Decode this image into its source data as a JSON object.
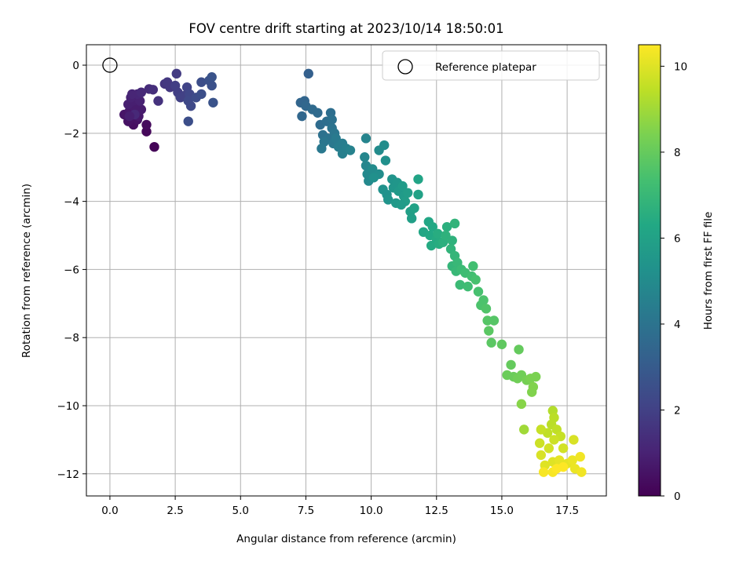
{
  "chart_data": {
    "type": "scatter",
    "title": "FOV centre drift starting at 2023/10/14 18:50:01",
    "xlabel": "Angular distance from reference (arcmin)",
    "ylabel": "Rotation from reference (arcmin)",
    "xlim": [
      -0.9,
      19.0
    ],
    "ylim": [
      -12.65,
      0.6
    ],
    "xticks": [
      0.0,
      2.5,
      5.0,
      7.5,
      10.0,
      12.5,
      15.0,
      17.5
    ],
    "xtick_labels": [
      "0.0",
      "2.5",
      "5.0",
      "7.5",
      "10.0",
      "12.5",
      "15.0",
      "17.5"
    ],
    "yticks": [
      0,
      -2,
      -4,
      -6,
      -8,
      -10,
      -12
    ],
    "ytick_labels": [
      "0",
      "−2",
      "−4",
      "−6",
      "−8",
      "−10",
      "−12"
    ],
    "grid": true,
    "legend": {
      "position": "top-right",
      "entries": [
        "Reference platepar"
      ]
    },
    "reference_point": {
      "x": 0.0,
      "y": 0.0,
      "marker": "open-circle"
    },
    "colorbar": {
      "label": "Hours from first FF file",
      "colormap": "viridis",
      "range": [
        0,
        10.5
      ],
      "ticks": [
        0,
        2,
        4,
        6,
        8,
        10
      ],
      "tick_labels": [
        "0",
        "2",
        "4",
        "6",
        "8",
        "10"
      ]
    },
    "points": [
      {
        "x": 1.7,
        "y": -2.4,
        "c": 0.1
      },
      {
        "x": 1.4,
        "y": -1.95,
        "c": 0.2
      },
      {
        "x": 1.4,
        "y": -1.75,
        "c": 0.3
      },
      {
        "x": 0.9,
        "y": -1.75,
        "c": 0.4
      },
      {
        "x": 1.05,
        "y": -1.6,
        "c": 0.5
      },
      {
        "x": 0.7,
        "y": -1.65,
        "c": 0.5
      },
      {
        "x": 0.55,
        "y": -1.45,
        "c": 0.6
      },
      {
        "x": 0.75,
        "y": -1.35,
        "c": 0.7
      },
      {
        "x": 1.1,
        "y": -1.5,
        "c": 0.7
      },
      {
        "x": 1.2,
        "y": -1.3,
        "c": 0.8
      },
      {
        "x": 0.95,
        "y": -1.25,
        "c": 0.8
      },
      {
        "x": 0.7,
        "y": -1.15,
        "c": 0.9
      },
      {
        "x": 0.9,
        "y": -1.05,
        "c": 0.9
      },
      {
        "x": 1.15,
        "y": -1.05,
        "c": 1.0
      },
      {
        "x": 0.8,
        "y": -0.95,
        "c": 1.0
      },
      {
        "x": 1.05,
        "y": -0.85,
        "c": 1.1
      },
      {
        "x": 0.85,
        "y": -0.85,
        "c": 1.1
      },
      {
        "x": 1.2,
        "y": -0.8,
        "c": 1.2
      },
      {
        "x": 0.95,
        "y": -1.45,
        "c": 1.2
      },
      {
        "x": 0.75,
        "y": -1.5,
        "c": 0.9
      },
      {
        "x": 1.5,
        "y": -0.7,
        "c": 1.3
      },
      {
        "x": 1.65,
        "y": -0.72,
        "c": 1.4
      },
      {
        "x": 1.85,
        "y": -1.05,
        "c": 1.5
      },
      {
        "x": 2.1,
        "y": -0.55,
        "c": 1.6
      },
      {
        "x": 2.3,
        "y": -0.65,
        "c": 1.7
      },
      {
        "x": 2.2,
        "y": -0.5,
        "c": 1.7
      },
      {
        "x": 2.55,
        "y": -0.25,
        "c": 1.8
      },
      {
        "x": 2.5,
        "y": -0.6,
        "c": 1.9
      },
      {
        "x": 2.6,
        "y": -0.8,
        "c": 1.9
      },
      {
        "x": 2.7,
        "y": -0.95,
        "c": 2.0
      },
      {
        "x": 2.85,
        "y": -0.9,
        "c": 2.0
      },
      {
        "x": 2.95,
        "y": -0.65,
        "c": 2.1
      },
      {
        "x": 3.05,
        "y": -0.85,
        "c": 2.2
      },
      {
        "x": 3.0,
        "y": -1.05,
        "c": 2.3
      },
      {
        "x": 3.1,
        "y": -1.2,
        "c": 2.3
      },
      {
        "x": 3.3,
        "y": -0.95,
        "c": 2.4
      },
      {
        "x": 3.5,
        "y": -0.85,
        "c": 2.5
      },
      {
        "x": 3.5,
        "y": -0.5,
        "c": 2.5
      },
      {
        "x": 3.8,
        "y": -0.45,
        "c": 2.6
      },
      {
        "x": 3.9,
        "y": -0.6,
        "c": 2.6
      },
      {
        "x": 3.9,
        "y": -0.35,
        "c": 2.7
      },
      {
        "x": 3.95,
        "y": -1.1,
        "c": 2.7
      },
      {
        "x": 3.0,
        "y": -1.65,
        "c": 2.5
      },
      {
        "x": 7.6,
        "y": -0.25,
        "c": 3.2
      },
      {
        "x": 7.3,
        "y": -1.1,
        "c": 3.4
      },
      {
        "x": 7.45,
        "y": -1.05,
        "c": 3.4
      },
      {
        "x": 7.5,
        "y": -1.2,
        "c": 3.5
      },
      {
        "x": 7.35,
        "y": -1.5,
        "c": 3.5
      },
      {
        "x": 7.75,
        "y": -1.3,
        "c": 3.6
      },
      {
        "x": 7.95,
        "y": -1.4,
        "c": 3.6
      },
      {
        "x": 8.05,
        "y": -1.75,
        "c": 3.7
      },
      {
        "x": 8.3,
        "y": -1.65,
        "c": 3.8
      },
      {
        "x": 8.45,
        "y": -1.4,
        "c": 3.8
      },
      {
        "x": 8.5,
        "y": -1.6,
        "c": 3.9
      },
      {
        "x": 8.15,
        "y": -2.05,
        "c": 3.9
      },
      {
        "x": 8.35,
        "y": -2.15,
        "c": 4.0
      },
      {
        "x": 8.5,
        "y": -1.85,
        "c": 4.0
      },
      {
        "x": 8.6,
        "y": -2.0,
        "c": 4.1
      },
      {
        "x": 8.2,
        "y": -2.25,
        "c": 4.1
      },
      {
        "x": 8.55,
        "y": -2.3,
        "c": 4.2
      },
      {
        "x": 8.1,
        "y": -2.45,
        "c": 4.2
      },
      {
        "x": 8.65,
        "y": -2.15,
        "c": 4.3
      },
      {
        "x": 8.75,
        "y": -2.4,
        "c": 4.4
      },
      {
        "x": 8.9,
        "y": -2.3,
        "c": 4.4
      },
      {
        "x": 8.9,
        "y": -2.6,
        "c": 4.5
      },
      {
        "x": 9.05,
        "y": -2.45,
        "c": 4.5
      },
      {
        "x": 9.2,
        "y": -2.5,
        "c": 4.6
      },
      {
        "x": 9.8,
        "y": -2.15,
        "c": 4.7
      },
      {
        "x": 9.75,
        "y": -2.7,
        "c": 4.8
      },
      {
        "x": 9.8,
        "y": -2.95,
        "c": 4.8
      },
      {
        "x": 9.85,
        "y": -3.2,
        "c": 4.9
      },
      {
        "x": 9.9,
        "y": -3.4,
        "c": 4.9
      },
      {
        "x": 10.05,
        "y": -3.05,
        "c": 5.0
      },
      {
        "x": 10.3,
        "y": -2.5,
        "c": 5.0
      },
      {
        "x": 10.5,
        "y": -2.35,
        "c": 5.1
      },
      {
        "x": 10.3,
        "y": -3.2,
        "c": 5.1
      },
      {
        "x": 10.1,
        "y": -3.3,
        "c": 5.2
      },
      {
        "x": 10.55,
        "y": -2.8,
        "c": 5.2
      },
      {
        "x": 10.45,
        "y": -3.65,
        "c": 5.3
      },
      {
        "x": 10.6,
        "y": -3.8,
        "c": 5.3
      },
      {
        "x": 10.65,
        "y": -3.95,
        "c": 5.4
      },
      {
        "x": 10.8,
        "y": -3.35,
        "c": 5.4
      },
      {
        "x": 10.85,
        "y": -3.6,
        "c": 5.5
      },
      {
        "x": 11.0,
        "y": -3.45,
        "c": 5.5
      },
      {
        "x": 11.05,
        "y": -3.7,
        "c": 5.6
      },
      {
        "x": 10.95,
        "y": -4.05,
        "c": 5.6
      },
      {
        "x": 11.2,
        "y": -3.55,
        "c": 5.7
      },
      {
        "x": 11.25,
        "y": -3.85,
        "c": 5.7
      },
      {
        "x": 11.3,
        "y": -4.0,
        "c": 5.8
      },
      {
        "x": 11.4,
        "y": -3.75,
        "c": 5.8
      },
      {
        "x": 11.5,
        "y": -4.3,
        "c": 5.9
      },
      {
        "x": 11.55,
        "y": -4.5,
        "c": 5.9
      },
      {
        "x": 11.65,
        "y": -4.2,
        "c": 6.0
      },
      {
        "x": 11.8,
        "y": -3.8,
        "c": 6.0
      },
      {
        "x": 11.8,
        "y": -3.35,
        "c": 6.1
      },
      {
        "x": 11.15,
        "y": -4.1,
        "c": 5.7
      },
      {
        "x": 12.0,
        "y": -4.9,
        "c": 6.2
      },
      {
        "x": 12.2,
        "y": -4.6,
        "c": 6.2
      },
      {
        "x": 12.25,
        "y": -5.0,
        "c": 6.3
      },
      {
        "x": 12.35,
        "y": -4.75,
        "c": 6.3
      },
      {
        "x": 12.3,
        "y": -5.3,
        "c": 6.4
      },
      {
        "x": 12.5,
        "y": -5.1,
        "c": 6.4
      },
      {
        "x": 12.6,
        "y": -5.25,
        "c": 6.5
      },
      {
        "x": 12.55,
        "y": -4.95,
        "c": 6.5
      },
      {
        "x": 12.75,
        "y": -5.2,
        "c": 6.6
      },
      {
        "x": 12.9,
        "y": -4.75,
        "c": 6.6
      },
      {
        "x": 12.85,
        "y": -5.0,
        "c": 6.7
      },
      {
        "x": 13.1,
        "y": -5.15,
        "c": 6.7
      },
      {
        "x": 13.05,
        "y": -5.4,
        "c": 6.8
      },
      {
        "x": 13.2,
        "y": -4.65,
        "c": 6.8
      },
      {
        "x": 13.2,
        "y": -5.6,
        "c": 6.9
      },
      {
        "x": 13.1,
        "y": -5.9,
        "c": 6.9
      },
      {
        "x": 13.3,
        "y": -5.8,
        "c": 7.0
      },
      {
        "x": 13.25,
        "y": -6.05,
        "c": 7.0
      },
      {
        "x": 13.45,
        "y": -6.0,
        "c": 7.1
      },
      {
        "x": 13.4,
        "y": -6.45,
        "c": 7.1
      },
      {
        "x": 13.6,
        "y": -6.1,
        "c": 7.2
      },
      {
        "x": 13.7,
        "y": -6.5,
        "c": 7.2
      },
      {
        "x": 13.85,
        "y": -6.2,
        "c": 7.3
      },
      {
        "x": 13.9,
        "y": -5.9,
        "c": 7.3
      },
      {
        "x": 14.0,
        "y": -6.3,
        "c": 7.4
      },
      {
        "x": 14.1,
        "y": -6.65,
        "c": 7.4
      },
      {
        "x": 14.2,
        "y": -7.05,
        "c": 7.5
      },
      {
        "x": 14.3,
        "y": -6.9,
        "c": 7.5
      },
      {
        "x": 14.4,
        "y": -7.15,
        "c": 7.6
      },
      {
        "x": 14.45,
        "y": -7.5,
        "c": 7.7
      },
      {
        "x": 14.7,
        "y": -7.5,
        "c": 7.7
      },
      {
        "x": 14.5,
        "y": -7.8,
        "c": 7.8
      },
      {
        "x": 14.6,
        "y": -8.15,
        "c": 7.8
      },
      {
        "x": 15.0,
        "y": -8.2,
        "c": 7.9
      },
      {
        "x": 15.65,
        "y": -8.35,
        "c": 8.0
      },
      {
        "x": 15.35,
        "y": -8.8,
        "c": 8.0
      },
      {
        "x": 15.2,
        "y": -9.1,
        "c": 8.1
      },
      {
        "x": 15.45,
        "y": -9.15,
        "c": 8.1
      },
      {
        "x": 15.6,
        "y": -9.2,
        "c": 8.2
      },
      {
        "x": 15.75,
        "y": -9.1,
        "c": 8.2
      },
      {
        "x": 15.95,
        "y": -9.25,
        "c": 8.3
      },
      {
        "x": 16.1,
        "y": -9.2,
        "c": 8.4
      },
      {
        "x": 16.3,
        "y": -9.15,
        "c": 8.4
      },
      {
        "x": 16.2,
        "y": -9.45,
        "c": 8.5
      },
      {
        "x": 16.15,
        "y": -9.6,
        "c": 8.5
      },
      {
        "x": 15.75,
        "y": -9.95,
        "c": 8.6
      },
      {
        "x": 15.85,
        "y": -10.7,
        "c": 9.0
      },
      {
        "x": 16.95,
        "y": -10.15,
        "c": 9.3
      },
      {
        "x": 17.0,
        "y": -10.35,
        "c": 9.4
      },
      {
        "x": 16.9,
        "y": -10.55,
        "c": 9.4
      },
      {
        "x": 16.75,
        "y": -10.8,
        "c": 9.5
      },
      {
        "x": 17.1,
        "y": -10.7,
        "c": 9.5
      },
      {
        "x": 16.5,
        "y": -10.7,
        "c": 9.6
      },
      {
        "x": 17.25,
        "y": -10.9,
        "c": 9.6
      },
      {
        "x": 16.45,
        "y": -11.1,
        "c": 9.7
      },
      {
        "x": 17.0,
        "y": -11.0,
        "c": 9.7
      },
      {
        "x": 16.8,
        "y": -11.25,
        "c": 9.8
      },
      {
        "x": 17.35,
        "y": -11.25,
        "c": 9.8
      },
      {
        "x": 17.75,
        "y": -11.0,
        "c": 9.9
      },
      {
        "x": 16.5,
        "y": -11.45,
        "c": 9.9
      },
      {
        "x": 16.65,
        "y": -11.75,
        "c": 10.0
      },
      {
        "x": 16.95,
        "y": -11.65,
        "c": 10.0
      },
      {
        "x": 17.2,
        "y": -11.6,
        "c": 10.1
      },
      {
        "x": 17.5,
        "y": -11.7,
        "c": 10.1
      },
      {
        "x": 17.7,
        "y": -11.6,
        "c": 10.2
      },
      {
        "x": 17.8,
        "y": -11.85,
        "c": 10.2
      },
      {
        "x": 18.0,
        "y": -11.5,
        "c": 10.3
      },
      {
        "x": 18.05,
        "y": -11.95,
        "c": 10.3
      },
      {
        "x": 16.6,
        "y": -11.95,
        "c": 10.4
      },
      {
        "x": 16.95,
        "y": -11.95,
        "c": 10.4
      },
      {
        "x": 17.35,
        "y": -11.8,
        "c": 10.5
      },
      {
        "x": 17.1,
        "y": -11.85,
        "c": 10.5
      }
    ]
  }
}
